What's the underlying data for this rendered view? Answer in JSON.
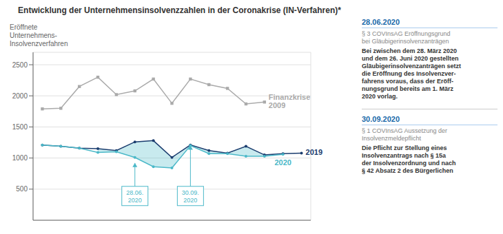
{
  "chart_data": {
    "type": "line",
    "title": "Entwicklung der Unternehmensinsolvenzzahlen in der Coronakrise (IN-Verfahren)*",
    "y_label": "Eröffnete\nUnternehmens-\nInsolvenzverfahren",
    "x": [
      0,
      1,
      2,
      3,
      4,
      5,
      6,
      7,
      8,
      9,
      10,
      11,
      12,
      13,
      14
    ],
    "xlim": [
      -0.5,
      14.5
    ],
    "xticks": [
      0,
      2,
      4,
      6,
      8,
      10,
      12,
      14
    ],
    "ylim": [
      0,
      2700
    ],
    "yticks": [
      500,
      1000,
      1500,
      2000,
      2500
    ],
    "grid": true,
    "tick_labels": "y",
    "series": [
      {
        "name": "Finanzkrise\n2009",
        "color": "#aaaaaa",
        "marker": "square",
        "values": [
          1790,
          1800,
          2150,
          2300,
          2020,
          2080,
          2270,
          1880,
          2270,
          2180,
          2120,
          1870,
          1900,
          null,
          null
        ]
      },
      {
        "name": "2019",
        "color": "#1a3c6e",
        "marker": "circle",
        "values": [
          1210,
          1190,
          1160,
          1150,
          1120,
          1260,
          1280,
          1010,
          1210,
          1120,
          1080,
          1190,
          1050,
          1070,
          1080
        ]
      },
      {
        "name": "2020",
        "color": "#4ab8c8",
        "marker": "circle",
        "values": [
          1210,
          1190,
          1160,
          1090,
          1100,
          1010,
          860,
          840,
          1200,
          1070,
          1070,
          1030,
          1030,
          1060,
          null
        ]
      }
    ],
    "annotations": [
      {
        "text": "28.06.\n2020",
        "x": 5,
        "y": 920,
        "text_y": 390
      },
      {
        "text": "30.09.\n2020",
        "x": 8,
        "y": 1200,
        "text_y": 390
      }
    ],
    "notes": [
      {
        "title": "28.06.2020",
        "subtitle": "§ 3 COVInsAG Eröffnungsgrund\nbei Gläubigerinsolvenzanträgen",
        "text": "Bei zwischen dem 28. März 2020\nund dem 26. Juni 2020 gestellten\nGläubigerinsolvenzanträgen setzt\ndie Eröffnung des Insolvenzver-\nfahrens voraus, dass der Eröff-\nnungsgrund bereits am 1. März\n2020 vorlag."
      },
      {
        "title": "30.09.2020",
        "subtitle": "§ 1 COVInsAG Aussetzung der\nInsolvenzmeldepflicht",
        "text": "Die Pflicht zur Stellung eines\nInsolvenzantrags nach § 15a\nder Insolvenzordnung und nach\n§ 42 Absatz 2 des Bürgerlichen"
      }
    ]
  }
}
